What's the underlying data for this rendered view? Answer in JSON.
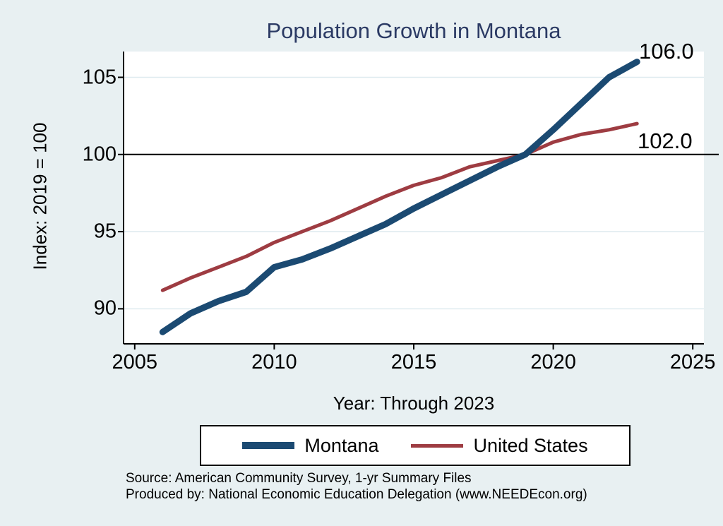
{
  "title": "Population Growth in Montana",
  "colors": {
    "background": "#e8f0f2",
    "plot_background": "#ffffff",
    "title": "#2b3a64",
    "grid": "#dfebef",
    "axis": "#000000",
    "reference_line": "#000000",
    "montana": "#1b4a72",
    "united_states": "#9e3c42"
  },
  "chart_data": {
    "type": "line",
    "title": "Population Growth in Montana",
    "xlabel": "Year: Through 2023",
    "ylabel": "Index: 2019 = 100",
    "xlim": [
      2004.6,
      2025.4
    ],
    "ylim": [
      87.73,
      106.67
    ],
    "xticks": [
      2005,
      2010,
      2015,
      2020,
      2025
    ],
    "yticks": [
      90,
      95,
      100,
      105
    ],
    "grid": true,
    "reference_line_y": 100,
    "legend_position": "bottom",
    "x": [
      2006,
      2007,
      2008,
      2009,
      2010,
      2011,
      2012,
      2013,
      2014,
      2015,
      2016,
      2017,
      2018,
      2019,
      2020,
      2021,
      2022,
      2023
    ],
    "series": [
      {
        "name": "Montana",
        "color": "#1b4a72",
        "line_width": 9,
        "end_label": "106.0",
        "values": [
          88.5,
          89.7,
          90.5,
          91.1,
          92.7,
          93.2,
          93.9,
          94.7,
          95.5,
          96.5,
          97.4,
          98.3,
          99.2,
          100.0,
          101.6,
          103.3,
          105.0,
          106.0
        ]
      },
      {
        "name": "United States",
        "color": "#9e3c42",
        "line_width": 5,
        "end_label": "102.0",
        "values": [
          91.2,
          92.0,
          92.7,
          93.4,
          94.3,
          95.0,
          95.7,
          96.5,
          97.3,
          98.0,
          98.5,
          99.2,
          99.6,
          100.0,
          100.8,
          101.3,
          101.6,
          102.0
        ]
      }
    ]
  },
  "footer": {
    "line1": "Source: American Community Survey, 1-yr Summary Files",
    "line2": "Produced by: National Economic Education Delegation (www.NEEDEcon.org)"
  }
}
